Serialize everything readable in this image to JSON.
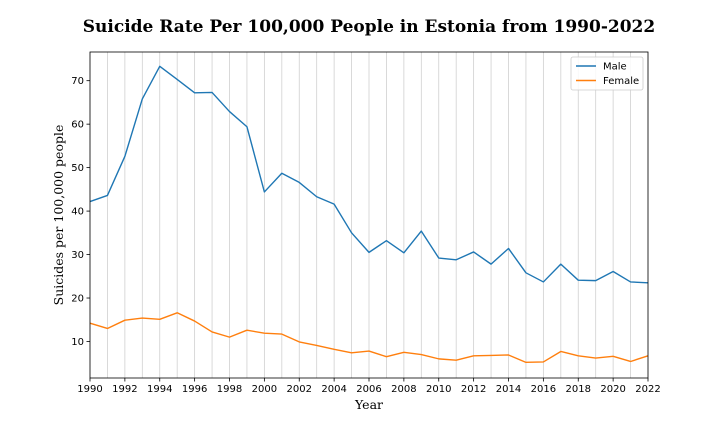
{
  "chart_data": {
    "type": "line",
    "title": "Suicide Rate Per 100,000 People in Estonia from 1990-2022",
    "xlabel": "Year",
    "ylabel": "Suicides per 100,000 people",
    "xlim": [
      1990,
      2022
    ],
    "ylim": [
      1.6,
      76.6
    ],
    "grid": "vertical",
    "legend_position": "top-right",
    "x": [
      1990,
      1991,
      1992,
      1993,
      1994,
      1995,
      1996,
      1997,
      1998,
      1999,
      2000,
      2001,
      2002,
      2003,
      2004,
      2005,
      2006,
      2007,
      2008,
      2009,
      2010,
      2011,
      2012,
      2013,
      2014,
      2015,
      2016,
      2017,
      2018,
      2019,
      2020,
      2021,
      2022
    ],
    "xticks": [
      "1990",
      "1992",
      "1994",
      "1996",
      "1998",
      "2000",
      "2002",
      "2004",
      "2006",
      "2008",
      "2010",
      "2012",
      "2014",
      "2016",
      "2018",
      "2020",
      "2022"
    ],
    "yticks": [
      "10",
      "20",
      "30",
      "40",
      "50",
      "60",
      "70"
    ],
    "series": [
      {
        "name": "Male",
        "color": "#1f77b4",
        "values": [
          42.2,
          43.6,
          52.6,
          65.8,
          73.3,
          70.3,
          67.2,
          67.3,
          62.9,
          59.4,
          44.4,
          48.7,
          46.6,
          43.3,
          41.6,
          35.0,
          30.5,
          33.2,
          30.4,
          35.4,
          29.2,
          28.8,
          30.6,
          27.8,
          31.4,
          25.8,
          23.7,
          27.8,
          24.1,
          24.0,
          26.1,
          23.7,
          23.5
        ]
      },
      {
        "name": "Female",
        "color": "#ff7f0e",
        "values": [
          14.2,
          13.0,
          14.9,
          15.4,
          15.1,
          16.6,
          14.7,
          12.2,
          11.0,
          12.6,
          11.9,
          11.7,
          9.9,
          9.1,
          8.2,
          7.4,
          7.8,
          6.5,
          7.5,
          7.0,
          6.0,
          5.7,
          6.7,
          6.8,
          6.9,
          5.2,
          5.3,
          7.7,
          6.7,
          6.2,
          6.6,
          5.4,
          6.7
        ]
      }
    ]
  }
}
